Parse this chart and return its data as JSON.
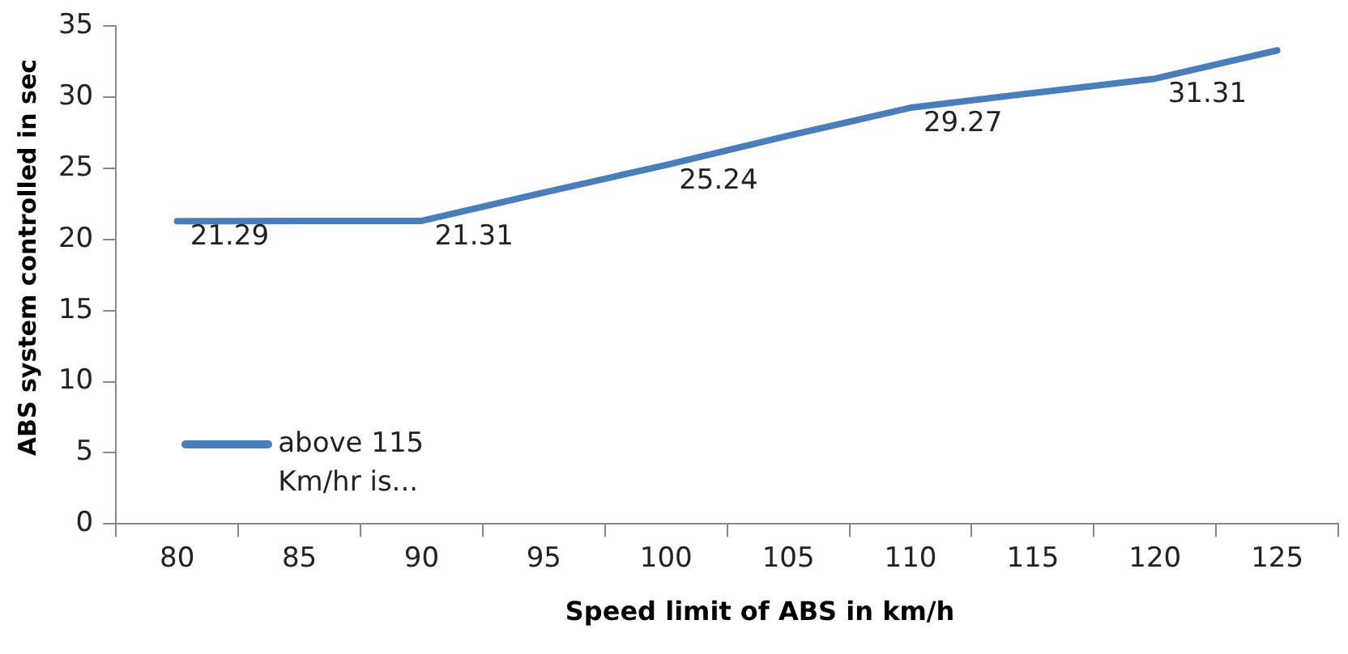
{
  "chart_data": {
    "type": "line",
    "xlabel": "Speed limit of ABS in km/h",
    "ylabel": "ABS system controlled in sec",
    "categories": [
      "80",
      "85",
      "90",
      "95",
      "100",
      "105",
      "110",
      "115",
      "120",
      "125"
    ],
    "series": [
      {
        "name": "above 115 Km/hr is...",
        "color": "#4a7ebb",
        "values": [
          21.29,
          21.3,
          21.31,
          23.3,
          25.24,
          27.3,
          29.27,
          30.3,
          31.31,
          33.3
        ],
        "value_labels": [
          "21.29",
          null,
          "21.31",
          null,
          "25.24",
          null,
          "29.27",
          null,
          "31.31",
          null
        ]
      }
    ],
    "ylim": [
      0,
      35
    ],
    "yticks": [
      0,
      5,
      10,
      15,
      20,
      25,
      30,
      35
    ],
    "grid": false,
    "legend": "bottom left",
    "marker": "none",
    "line_style": "solid"
  }
}
